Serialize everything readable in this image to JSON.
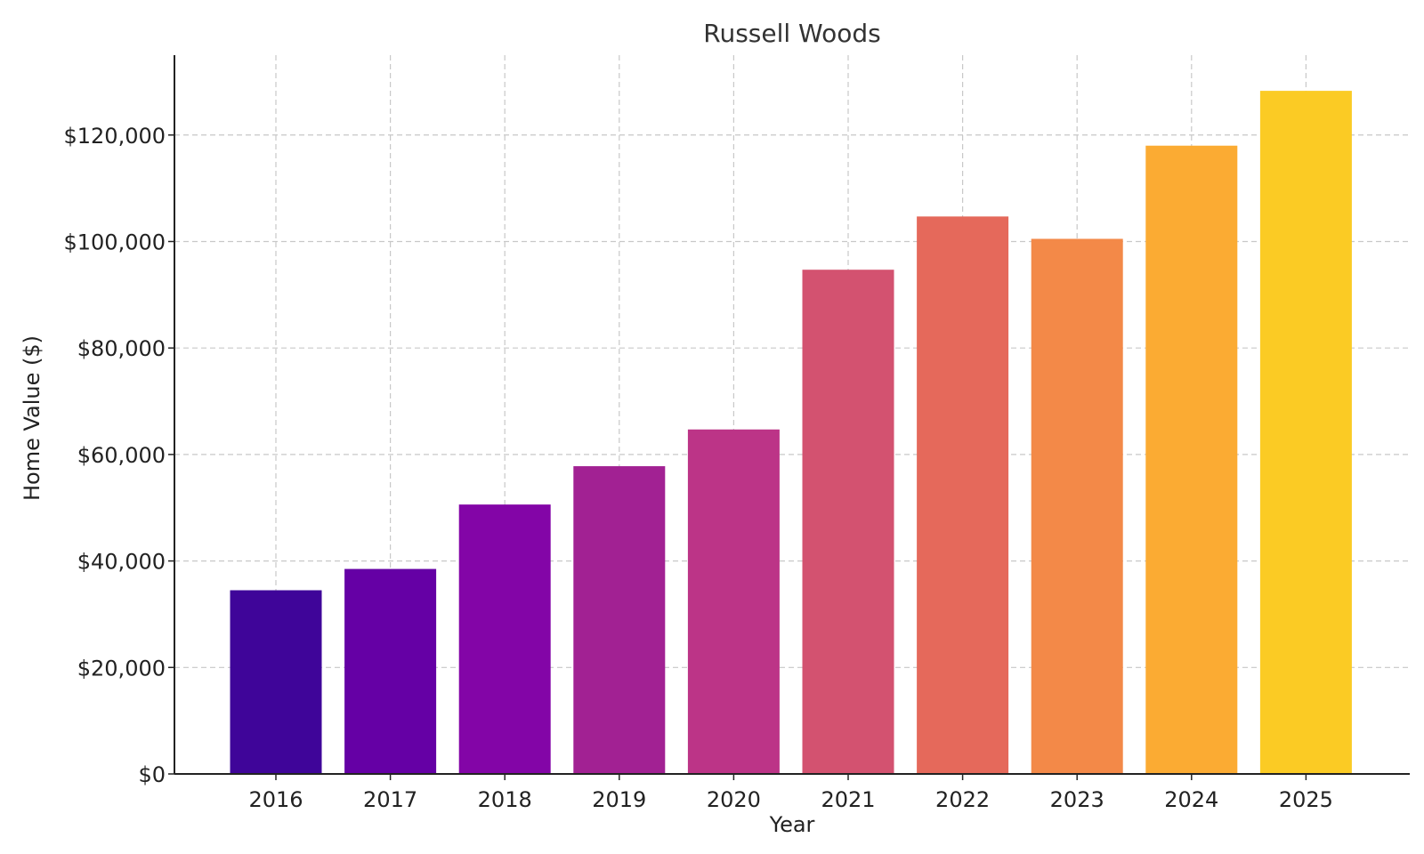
{
  "chart_data": {
    "type": "bar",
    "title": "Russell Woods",
    "xlabel": "Year",
    "ylabel": "Home Value ($)",
    "categories": [
      "2016",
      "2017",
      "2018",
      "2019",
      "2020",
      "2021",
      "2022",
      "2023",
      "2024",
      "2025"
    ],
    "values": [
      34500,
      38500,
      50600,
      57800,
      64700,
      94700,
      104700,
      100500,
      118000,
      128300
    ],
    "colors": [
      "#3f0599",
      "#6500a5",
      "#8305a7",
      "#a22193",
      "#bc3487",
      "#d35270",
      "#e5695b",
      "#f38948",
      "#fbab33",
      "#fbcb24"
    ],
    "ylim": [
      0,
      135000
    ],
    "yticks": [
      0,
      20000,
      40000,
      60000,
      80000,
      100000,
      120000
    ],
    "ytick_labels": [
      "$0",
      "$20,000",
      "$40,000",
      "$60,000",
      "$80,000",
      "$100,000",
      "$120,000"
    ],
    "grid": true,
    "legend": "none"
  }
}
